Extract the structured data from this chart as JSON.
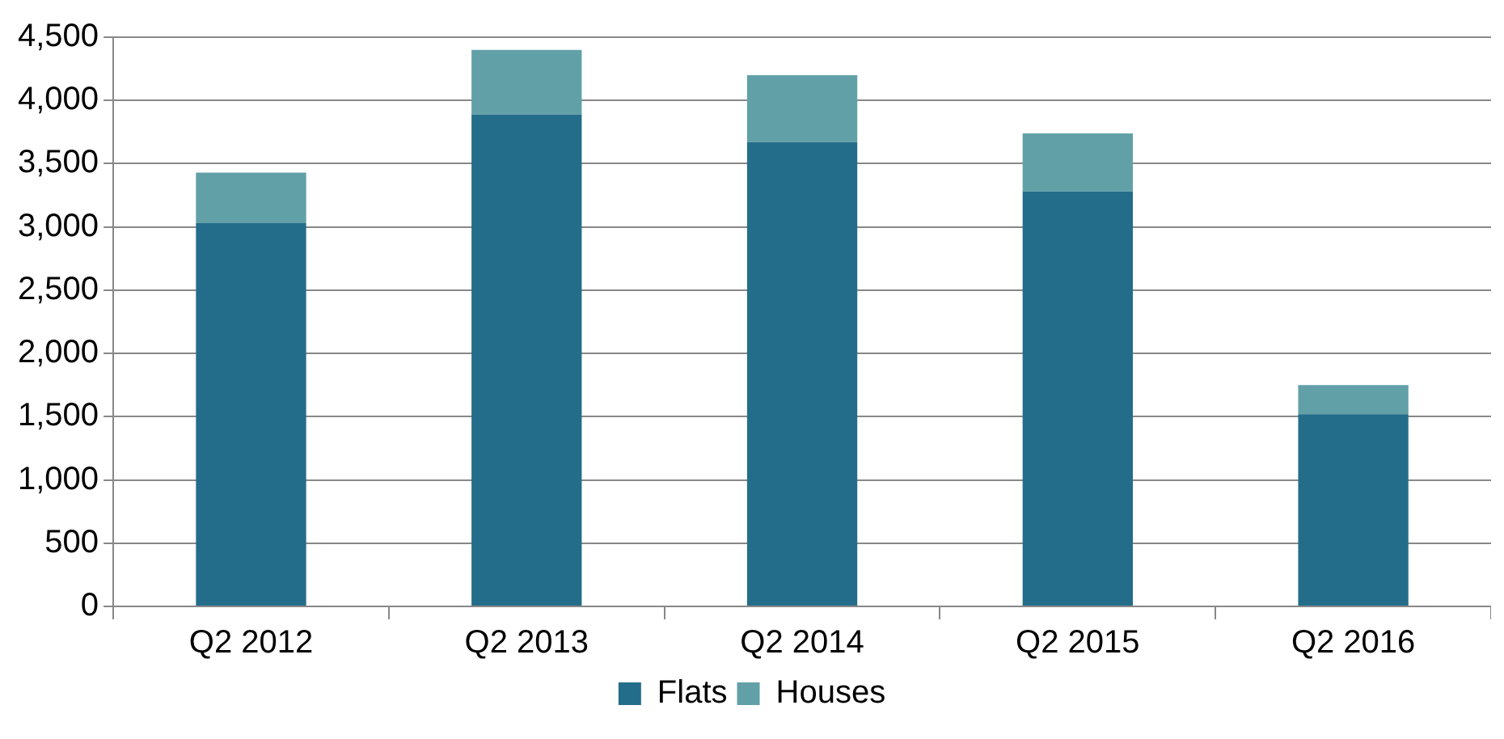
{
  "chart_data": {
    "type": "bar",
    "stacked": true,
    "categories": [
      "Q2 2012",
      "Q2 2013",
      "Q2 2014",
      "Q2 2015",
      "Q2 2016"
    ],
    "series": [
      {
        "name": "Flats",
        "color": "#246d8a",
        "values": [
          3030,
          3890,
          3670,
          3280,
          1520
        ]
      },
      {
        "name": "Houses",
        "color": "#62a0a8",
        "values": [
          400,
          510,
          530,
          460,
          230
        ]
      }
    ],
    "ylim": [
      0,
      4500
    ],
    "yticks": [
      {
        "value": 0,
        "label": "0"
      },
      {
        "value": 500,
        "label": "500"
      },
      {
        "value": 1000,
        "label": "1,000"
      },
      {
        "value": 1500,
        "label": "1,500"
      },
      {
        "value": 2000,
        "label": "2,000"
      },
      {
        "value": 2500,
        "label": "2,500"
      },
      {
        "value": 3000,
        "label": "3,000"
      },
      {
        "value": 3500,
        "label": "3,500"
      },
      {
        "value": 4000,
        "label": "4,000"
      },
      {
        "value": 4500,
        "label": "4,500"
      }
    ],
    "grid": "y",
    "legend": "bottom"
  }
}
